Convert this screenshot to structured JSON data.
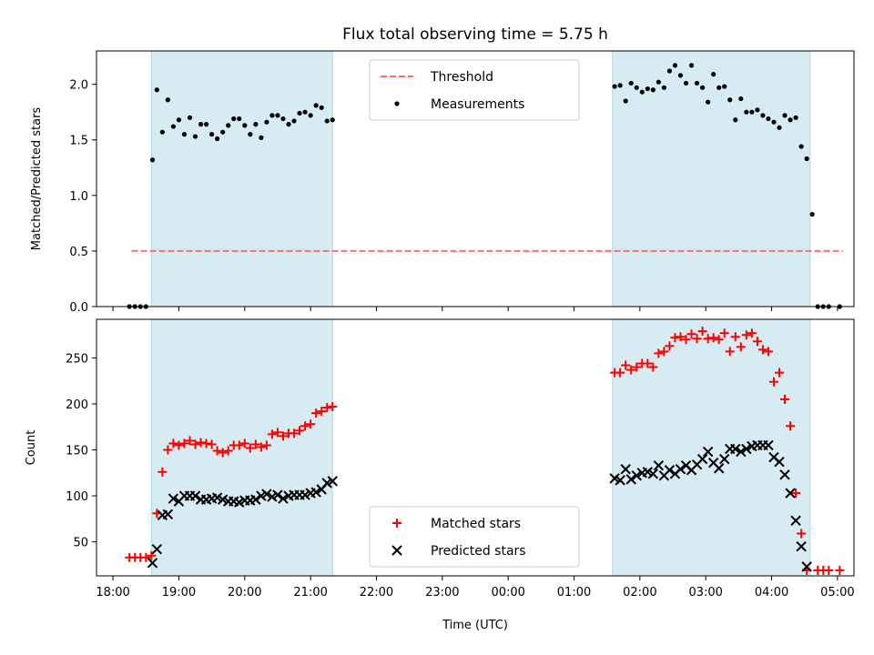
{
  "title": "Flux total observing time = 5.75 h",
  "xlabel": "Time (UTC)",
  "x_ticks": [
    "18:00",
    "19:00",
    "20:00",
    "21:00",
    "22:00",
    "23:00",
    "00:00",
    "01:00",
    "02:00",
    "03:00",
    "04:00",
    "05:00"
  ],
  "chart_data": [
    {
      "type": "scatter",
      "ylabel": "Matched/Predicted stars",
      "ylim": [
        0,
        2.3
      ],
      "y_ticks": [
        "0.0",
        "0.5",
        "1.0",
        "1.5",
        "2.0"
      ],
      "legend_position": "top-center",
      "shaded_windows": [
        [
          "18:35",
          "21:20"
        ],
        [
          "01:35",
          "04:35"
        ]
      ],
      "threshold": {
        "name": "Threshold",
        "value": 0.5,
        "x_range": [
          "18:17",
          "05:05"
        ],
        "color": "#ff7070",
        "style": "dashed"
      },
      "series": [
        {
          "name": "Measurements",
          "color": "#000000",
          "marker": "dot",
          "points": [
            [
              "18:15",
              0
            ],
            [
              "18:20",
              0
            ],
            [
              "18:25",
              0
            ],
            [
              "18:30",
              0
            ],
            [
              "18:36",
              1.32
            ],
            [
              "18:40",
              1.95
            ],
            [
              "18:45",
              1.57
            ],
            [
              "18:50",
              1.86
            ],
            [
              "18:55",
              1.62
            ],
            [
              "19:00",
              1.68
            ],
            [
              "19:05",
              1.55
            ],
            [
              "19:10",
              1.7
            ],
            [
              "19:15",
              1.53
            ],
            [
              "19:20",
              1.64
            ],
            [
              "19:25",
              1.64
            ],
            [
              "19:30",
              1.55
            ],
            [
              "19:35",
              1.51
            ],
            [
              "19:40",
              1.57
            ],
            [
              "19:45",
              1.63
            ],
            [
              "19:50",
              1.69
            ],
            [
              "19:55",
              1.69
            ],
            [
              "20:00",
              1.63
            ],
            [
              "20:05",
              1.55
            ],
            [
              "20:10",
              1.64
            ],
            [
              "20:15",
              1.52
            ],
            [
              "20:20",
              1.66
            ],
            [
              "20:25",
              1.72
            ],
            [
              "20:30",
              1.72
            ],
            [
              "20:35",
              1.69
            ],
            [
              "20:40",
              1.64
            ],
            [
              "20:45",
              1.67
            ],
            [
              "20:50",
              1.74
            ],
            [
              "20:55",
              1.75
            ],
            [
              "21:00",
              1.72
            ],
            [
              "21:05",
              1.81
            ],
            [
              "21:10",
              1.79
            ],
            [
              "21:15",
              1.67
            ],
            [
              "21:20",
              1.68
            ],
            [
              "01:37",
              1.98
            ],
            [
              "01:42",
              1.99
            ],
            [
              "01:47",
              1.85
            ],
            [
              "01:52",
              2.01
            ],
            [
              "01:57",
              1.97
            ],
            [
              "02:02",
              1.93
            ],
            [
              "02:07",
              1.96
            ],
            [
              "02:12",
              1.95
            ],
            [
              "02:17",
              2.02
            ],
            [
              "02:22",
              1.97
            ],
            [
              "02:27",
              2.12
            ],
            [
              "02:32",
              2.17
            ],
            [
              "02:37",
              2.08
            ],
            [
              "02:42",
              2.01
            ],
            [
              "02:47",
              2.17
            ],
            [
              "02:52",
              2.01
            ],
            [
              "02:57",
              1.97
            ],
            [
              "03:02",
              1.84
            ],
            [
              "03:07",
              2.09
            ],
            [
              "03:12",
              1.97
            ],
            [
              "03:17",
              1.98
            ],
            [
              "03:22",
              1.86
            ],
            [
              "03:27",
              1.68
            ],
            [
              "03:32",
              1.87
            ],
            [
              "03:37",
              1.75
            ],
            [
              "03:42",
              1.75
            ],
            [
              "03:47",
              1.77
            ],
            [
              "03:52",
              1.72
            ],
            [
              "03:57",
              1.69
            ],
            [
              "04:02",
              1.66
            ],
            [
              "04:07",
              1.61
            ],
            [
              "04:12",
              1.72
            ],
            [
              "04:17",
              1.68
            ],
            [
              "04:22",
              1.7
            ],
            [
              "04:27",
              1.44
            ],
            [
              "04:32",
              1.33
            ],
            [
              "04:37",
              0.83
            ],
            [
              "04:42",
              0
            ],
            [
              "04:47",
              0
            ],
            [
              "04:52",
              0
            ],
            [
              "05:02",
              0
            ]
          ]
        }
      ]
    },
    {
      "type": "scatter",
      "ylabel": "Count",
      "ylim": [
        13,
        292
      ],
      "y_ticks": [
        "50",
        "100",
        "150",
        "200",
        "250"
      ],
      "legend_position": "bottom-center",
      "shaded_windows": [
        [
          "18:35",
          "21:20"
        ],
        [
          "01:35",
          "04:35"
        ]
      ],
      "series": [
        {
          "name": "Matched stars",
          "color": "#ff0000",
          "marker": "plus",
          "points": [
            [
              "18:15",
              33
            ],
            [
              "18:20",
              33
            ],
            [
              "18:25",
              33
            ],
            [
              "18:30",
              33
            ],
            [
              "18:35",
              35
            ],
            [
              "18:40",
              81
            ],
            [
              "18:45",
              126
            ],
            [
              "18:50",
              150
            ],
            [
              "18:55",
              157
            ],
            [
              "19:00",
              155
            ],
            [
              "19:05",
              157
            ],
            [
              "19:10",
              160
            ],
            [
              "19:15",
              156
            ],
            [
              "19:20",
              158
            ],
            [
              "19:25",
              157
            ],
            [
              "19:30",
              156
            ],
            [
              "19:35",
              149
            ],
            [
              "19:40",
              147
            ],
            [
              "19:45",
              149
            ],
            [
              "19:50",
              155
            ],
            [
              "19:55",
              155
            ],
            [
              "20:00",
              157
            ],
            [
              "20:05",
              152
            ],
            [
              "20:10",
              156
            ],
            [
              "20:15",
              153
            ],
            [
              "20:20",
              155
            ],
            [
              "20:25",
              167
            ],
            [
              "20:30",
              169
            ],
            [
              "20:35",
              165
            ],
            [
              "20:40",
              168
            ],
            [
              "20:45",
              168
            ],
            [
              "20:50",
              171
            ],
            [
              "20:55",
              176
            ],
            [
              "21:00",
              178
            ],
            [
              "21:05",
              190
            ],
            [
              "21:10",
              192
            ],
            [
              "21:15",
              196
            ],
            [
              "21:20",
              197
            ],
            [
              "01:37",
              234
            ],
            [
              "01:42",
              234
            ],
            [
              "01:47",
              242
            ],
            [
              "01:52",
              237
            ],
            [
              "01:57",
              240
            ],
            [
              "02:02",
              244
            ],
            [
              "02:07",
              244
            ],
            [
              "02:12",
              240
            ],
            [
              "02:17",
              255
            ],
            [
              "02:22",
              257
            ],
            [
              "02:27",
              263
            ],
            [
              "02:32",
              272
            ],
            [
              "02:37",
              273
            ],
            [
              "02:42",
              270
            ],
            [
              "02:47",
              276
            ],
            [
              "02:52",
              271
            ],
            [
              "02:57",
              279
            ],
            [
              "03:02",
              271
            ],
            [
              "03:07",
              272
            ],
            [
              "03:12",
              270
            ],
            [
              "03:17",
              277
            ],
            [
              "03:22",
              257
            ],
            [
              "03:27",
              273
            ],
            [
              "03:32",
              262
            ],
            [
              "03:37",
              275
            ],
            [
              "03:42",
              277
            ],
            [
              "03:47",
              268
            ],
            [
              "03:52",
              259
            ],
            [
              "03:57",
              257
            ],
            [
              "04:02",
              224
            ],
            [
              "04:07",
              234
            ],
            [
              "04:12",
              205
            ],
            [
              "04:17",
              176
            ],
            [
              "04:22",
              103
            ],
            [
              "04:27",
              59
            ],
            [
              "04:32",
              19
            ],
            [
              "04:42",
              19
            ],
            [
              "04:47",
              19
            ],
            [
              "04:52",
              19
            ],
            [
              "05:02",
              19
            ]
          ]
        },
        {
          "name": "Predicted stars",
          "color": "#000000",
          "marker": "x",
          "points": [
            [
              "18:36",
              27
            ],
            [
              "18:40",
              42
            ],
            [
              "18:45",
              79
            ],
            [
              "18:50",
              80
            ],
            [
              "18:55",
              97
            ],
            [
              "19:00",
              94
            ],
            [
              "19:05",
              100
            ],
            [
              "19:10",
              100
            ],
            [
              "19:15",
              100
            ],
            [
              "19:20",
              96
            ],
            [
              "19:25",
              96
            ],
            [
              "19:30",
              97
            ],
            [
              "19:35",
              98
            ],
            [
              "19:40",
              96
            ],
            [
              "19:45",
              94
            ],
            [
              "19:50",
              94
            ],
            [
              "19:55",
              93
            ],
            [
              "20:00",
              95
            ],
            [
              "20:05",
              95
            ],
            [
              "20:10",
              96
            ],
            [
              "20:15",
              100
            ],
            [
              "20:20",
              102
            ],
            [
              "20:25",
              99
            ],
            [
              "20:30",
              101
            ],
            [
              "20:35",
              97
            ],
            [
              "20:40",
              100
            ],
            [
              "20:45",
              101
            ],
            [
              "20:50",
              101
            ],
            [
              "20:55",
              101
            ],
            [
              "21:00",
              103
            ],
            [
              "21:05",
              104
            ],
            [
              "21:10",
              107
            ],
            [
              "21:15",
              114
            ],
            [
              "21:20",
              116
            ],
            [
              "01:37",
              119
            ],
            [
              "01:42",
              117
            ],
            [
              "01:47",
              129
            ],
            [
              "01:52",
              118
            ],
            [
              "01:57",
              122
            ],
            [
              "02:02",
              125
            ],
            [
              "02:07",
              126
            ],
            [
              "02:12",
              124
            ],
            [
              "02:17",
              133
            ],
            [
              "02:22",
              122
            ],
            [
              "02:27",
              128
            ],
            [
              "02:32",
              124
            ],
            [
              "02:37",
              129
            ],
            [
              "02:42",
              133
            ],
            [
              "02:47",
              128
            ],
            [
              "02:52",
              134
            ],
            [
              "02:57",
              140
            ],
            [
              "03:02",
              148
            ],
            [
              "03:07",
              136
            ],
            [
              "03:12",
              130
            ],
            [
              "03:17",
              140
            ],
            [
              "03:22",
              151
            ],
            [
              "03:27",
              151
            ],
            [
              "03:32",
              148
            ],
            [
              "03:37",
              151
            ],
            [
              "03:42",
              154
            ],
            [
              "03:47",
              155
            ],
            [
              "03:52",
              155
            ],
            [
              "03:57",
              155
            ],
            [
              "04:02",
              142
            ],
            [
              "04:07",
              137
            ],
            [
              "04:12",
              123
            ],
            [
              "04:17",
              103
            ],
            [
              "04:22",
              73
            ],
            [
              "04:27",
              45
            ],
            [
              "04:32",
              23
            ]
          ]
        }
      ]
    }
  ]
}
